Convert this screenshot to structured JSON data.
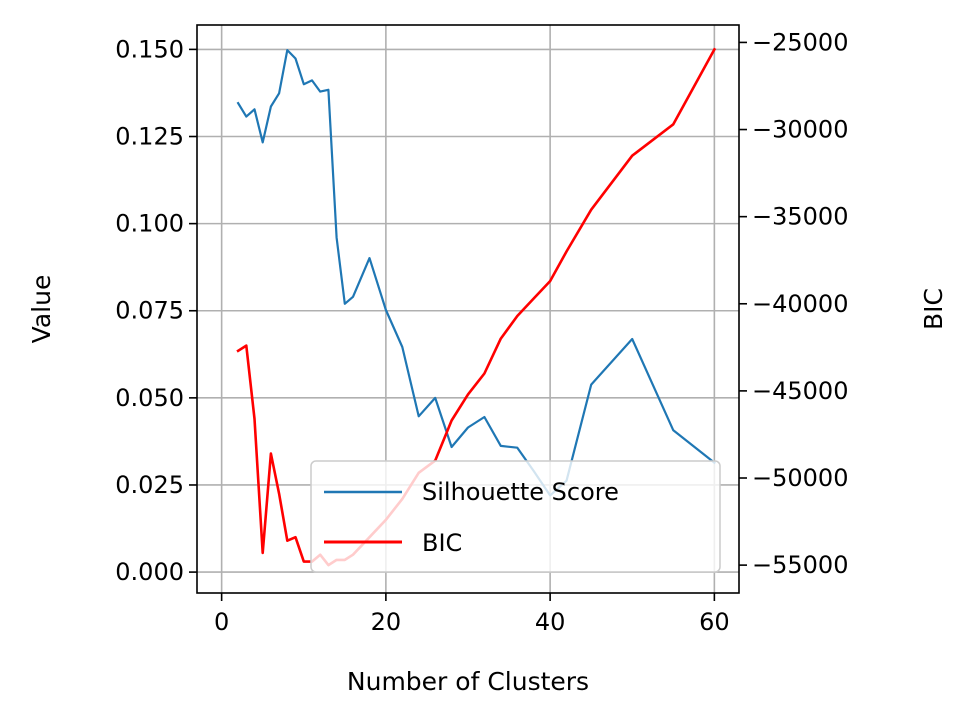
{
  "chart_data": {
    "type": "line",
    "title": "",
    "xlabel": "Number of Clusters",
    "ylabel": "Value",
    "y2label": "BIC",
    "xlim": [
      -3,
      63
    ],
    "ylim": [
      -0.006,
      0.157
    ],
    "y2lim": [
      -56600,
      -24000
    ],
    "x_ticks": [
      0,
      20,
      40,
      60
    ],
    "y_ticks": [
      0.0,
      0.025,
      0.05,
      0.075,
      0.1,
      0.125,
      0.15
    ],
    "y_tick_labels": [
      "0.000",
      "0.025",
      "0.050",
      "0.075",
      "0.100",
      "0.125",
      "0.150"
    ],
    "y2_ticks": [
      -55000,
      -50000,
      -45000,
      -40000,
      -35000,
      -30000,
      -25000
    ],
    "y2_tick_labels": [
      "−55000",
      "−50000",
      "−45000",
      "−40000",
      "−35000",
      "−30000",
      "−25000"
    ],
    "grid": true,
    "legend_position": "lower-right",
    "series": [
      {
        "name": "Silhouette Score",
        "axis": "left",
        "color": "#1f77b4",
        "x": [
          2,
          3,
          4,
          5,
          6,
          7,
          8,
          9,
          10,
          11,
          12,
          13,
          14,
          15,
          16,
          18,
          20,
          22,
          24,
          26,
          28,
          30,
          32,
          34,
          36,
          38,
          40,
          42,
          45,
          50,
          55,
          60
        ],
        "y": [
          0.1346,
          0.1307,
          0.1328,
          0.1233,
          0.1336,
          0.1374,
          0.1498,
          0.1474,
          0.14,
          0.1411,
          0.1379,
          0.1384,
          0.096,
          0.077,
          0.079,
          0.0901,
          0.0752,
          0.0646,
          0.0447,
          0.05,
          0.0359,
          0.0415,
          0.0445,
          0.0362,
          0.0357,
          0.029,
          0.022,
          0.0262,
          0.0538,
          0.0669,
          0.0407,
          0.0314
        ]
      },
      {
        "name": "BIC",
        "axis": "right",
        "color": "#ff0000",
        "x": [
          2,
          3,
          4,
          5,
          6,
          7,
          8,
          9,
          10,
          11,
          12,
          13,
          14,
          15,
          16,
          18,
          20,
          22,
          24,
          26,
          28,
          30,
          32,
          34,
          36,
          38,
          40,
          42,
          45,
          50,
          55,
          60
        ],
        "y": [
          -42700,
          -42400,
          -46600,
          -54300,
          -48600,
          -50900,
          -53600,
          -53400,
          -54800,
          -54800,
          -54400,
          -55000,
          -54700,
          -54700,
          -54400,
          -53400,
          -52400,
          -51200,
          -49700,
          -49000,
          -46700,
          -45200,
          -44000,
          -42000,
          -40700,
          -39700,
          -38700,
          -37000,
          -34600,
          -31500,
          -29700,
          -25400
        ]
      }
    ]
  }
}
